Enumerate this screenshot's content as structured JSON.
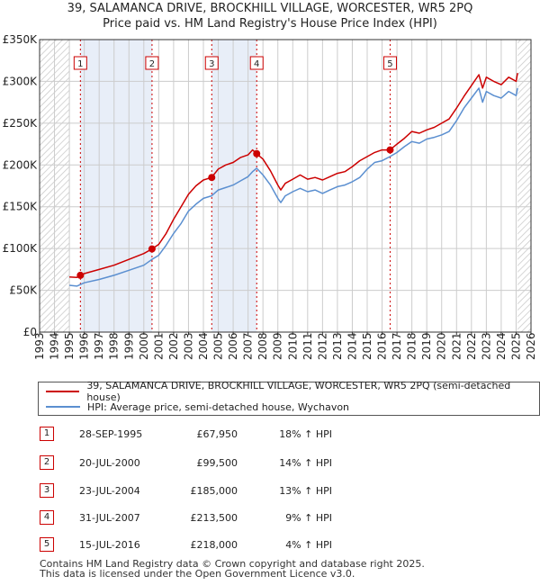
{
  "title_line1": "39, SALAMANCA DRIVE, BROCKHILL VILLAGE, WORCESTER, WR5 2PQ",
  "title_line2": "Price paid vs. HM Land Registry's House Price Index (HPI)",
  "colors": {
    "property": "#cc0000",
    "hpi": "#5b8fd0",
    "shade": "#e8eef8",
    "hatch": "#cccccc"
  },
  "chart_data": {
    "type": "line",
    "xlim": [
      1993,
      2026
    ],
    "ylim": [
      0,
      350000
    ],
    "y_ticks": [
      0,
      50000,
      100000,
      150000,
      200000,
      250000,
      300000,
      350000
    ],
    "y_tick_labels": [
      "£0",
      "£50K",
      "£100K",
      "£150K",
      "£200K",
      "£250K",
      "£300K",
      "£350K"
    ],
    "x_ticks": [
      1993,
      1994,
      1995,
      1996,
      1997,
      1998,
      1999,
      2000,
      2001,
      2002,
      2003,
      2004,
      2005,
      2006,
      2007,
      2008,
      2009,
      2010,
      2011,
      2012,
      2013,
      2014,
      2015,
      2016,
      2017,
      2018,
      2019,
      2020,
      2021,
      2022,
      2023,
      2024,
      2025,
      2026
    ],
    "data_start": 1995.0,
    "data_end": 2025.1,
    "series": [
      {
        "name": "39, SALAMANCA DRIVE, BROCKHILL VILLAGE, WORCESTER, WR5 2PQ (semi-detached house)",
        "color": "#cc0000",
        "x": [
          1995.0,
          1995.5,
          1996,
          1997,
          1998,
          1999,
          2000,
          2000.55,
          2001,
          2001.5,
          2002,
          2002.5,
          2003,
          2003.5,
          2004,
          2004.55,
          2005,
          2005.5,
          2006,
          2006.5,
          2007,
          2007.3,
          2007.58,
          2008,
          2008.5,
          2009,
          2009.2,
          2009.5,
          2010,
          2010.5,
          2011,
          2011.5,
          2012,
          2012.5,
          2013,
          2013.5,
          2014,
          2014.5,
          2015,
          2015.5,
          2016,
          2016.53,
          2017,
          2017.5,
          2018,
          2018.5,
          2019,
          2019.5,
          2020,
          2020.5,
          2021,
          2021.5,
          2022,
          2022.5,
          2022.75,
          2023,
          2023.5,
          2024,
          2024.5,
          2025,
          2025.1
        ],
        "values": [
          66000,
          65500,
          70000,
          75000,
          80000,
          87000,
          94000,
          99500,
          105000,
          118000,
          135000,
          150000,
          165000,
          175000,
          182000,
          185000,
          195000,
          200000,
          203000,
          209000,
          212000,
          218000,
          213500,
          207000,
          193000,
          176000,
          170000,
          178000,
          183000,
          188000,
          183000,
          185000,
          182000,
          186000,
          190000,
          192000,
          198000,
          205000,
          210000,
          215000,
          218000,
          218000,
          225000,
          232000,
          240000,
          238000,
          242000,
          245000,
          250000,
          255000,
          268000,
          282000,
          295000,
          308000,
          292000,
          305000,
          300000,
          296000,
          305000,
          300000,
          310000
        ]
      },
      {
        "name": "HPI: Average price, semi-detached house, Wychavon",
        "color": "#5b8fd0",
        "x": [
          1995.0,
          1995.5,
          1996,
          1997,
          1998,
          1999,
          2000,
          2000.55,
          2001,
          2001.5,
          2002,
          2002.5,
          2003,
          2003.5,
          2004,
          2004.55,
          2005,
          2005.5,
          2006,
          2006.5,
          2007,
          2007.3,
          2007.58,
          2008,
          2008.5,
          2009,
          2009.2,
          2009.5,
          2010,
          2010.5,
          2011,
          2011.5,
          2012,
          2012.5,
          2013,
          2013.5,
          2014,
          2014.5,
          2015,
          2015.5,
          2016,
          2016.53,
          2017,
          2017.5,
          2018,
          2018.5,
          2019,
          2019.5,
          2020,
          2020.5,
          2021,
          2021.5,
          2022,
          2022.5,
          2022.75,
          2023,
          2023.5,
          2024,
          2024.5,
          2025,
          2025.1
        ],
        "values": [
          56000,
          55000,
          59000,
          63000,
          68000,
          74000,
          80000,
          87000,
          92000,
          104000,
          118000,
          130000,
          145000,
          153000,
          160000,
          163000,
          170000,
          173000,
          176000,
          181000,
          186000,
          192000,
          196000,
          188000,
          176000,
          160000,
          155000,
          163000,
          168000,
          172000,
          168000,
          170000,
          166000,
          170000,
          174000,
          176000,
          180000,
          185000,
          195000,
          203000,
          205000,
          210000,
          215000,
          222000,
          228000,
          226000,
          231000,
          233000,
          236000,
          240000,
          253000,
          268000,
          280000,
          292000,
          275000,
          288000,
          283000,
          280000,
          288000,
          283000,
          292000
        ]
      }
    ],
    "transactions": [
      {
        "label": "1",
        "date": "28-SEP-1995",
        "x": 1995.74,
        "price": 67950,
        "price_text": "£67,950",
        "hpi": "18% ↑ HPI"
      },
      {
        "label": "2",
        "date": "20-JUL-2000",
        "x": 2000.55,
        "price": 99500,
        "price_text": "£99,500",
        "hpi": "14% ↑ HPI"
      },
      {
        "label": "3",
        "date": "23-JUL-2004",
        "x": 2004.56,
        "price": 185000,
        "price_text": "£185,000",
        "hpi": "13% ↑ HPI"
      },
      {
        "label": "4",
        "date": "31-JUL-2007",
        "x": 2007.58,
        "price": 213500,
        "price_text": "£213,500",
        "hpi": "9% ↑ HPI"
      },
      {
        "label": "5",
        "date": "15-JUL-2016",
        "x": 2016.54,
        "price": 218000,
        "price_text": "£218,000",
        "hpi": "4% ↑ HPI"
      }
    ]
  },
  "legend": {
    "property": "39, SALAMANCA DRIVE, BROCKHILL VILLAGE, WORCESTER, WR5 2PQ (semi-detached house)",
    "hpi": "HPI: Average price, semi-detached house, Wychavon"
  },
  "footer": {
    "line1": "Contains HM Land Registry data © Crown copyright and database right 2025.",
    "line2": "This data is licensed under the Open Government Licence v3.0."
  }
}
